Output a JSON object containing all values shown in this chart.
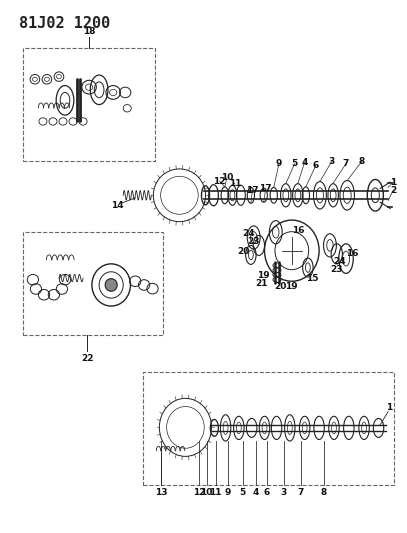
{
  "title": "81J02 1200",
  "bg_color": "#ffffff",
  "diagram_color": "#222222",
  "box_color": "#666666",
  "title_fontsize": 11,
  "title_fontweight": "bold",
  "label_fontsize": 6.5
}
